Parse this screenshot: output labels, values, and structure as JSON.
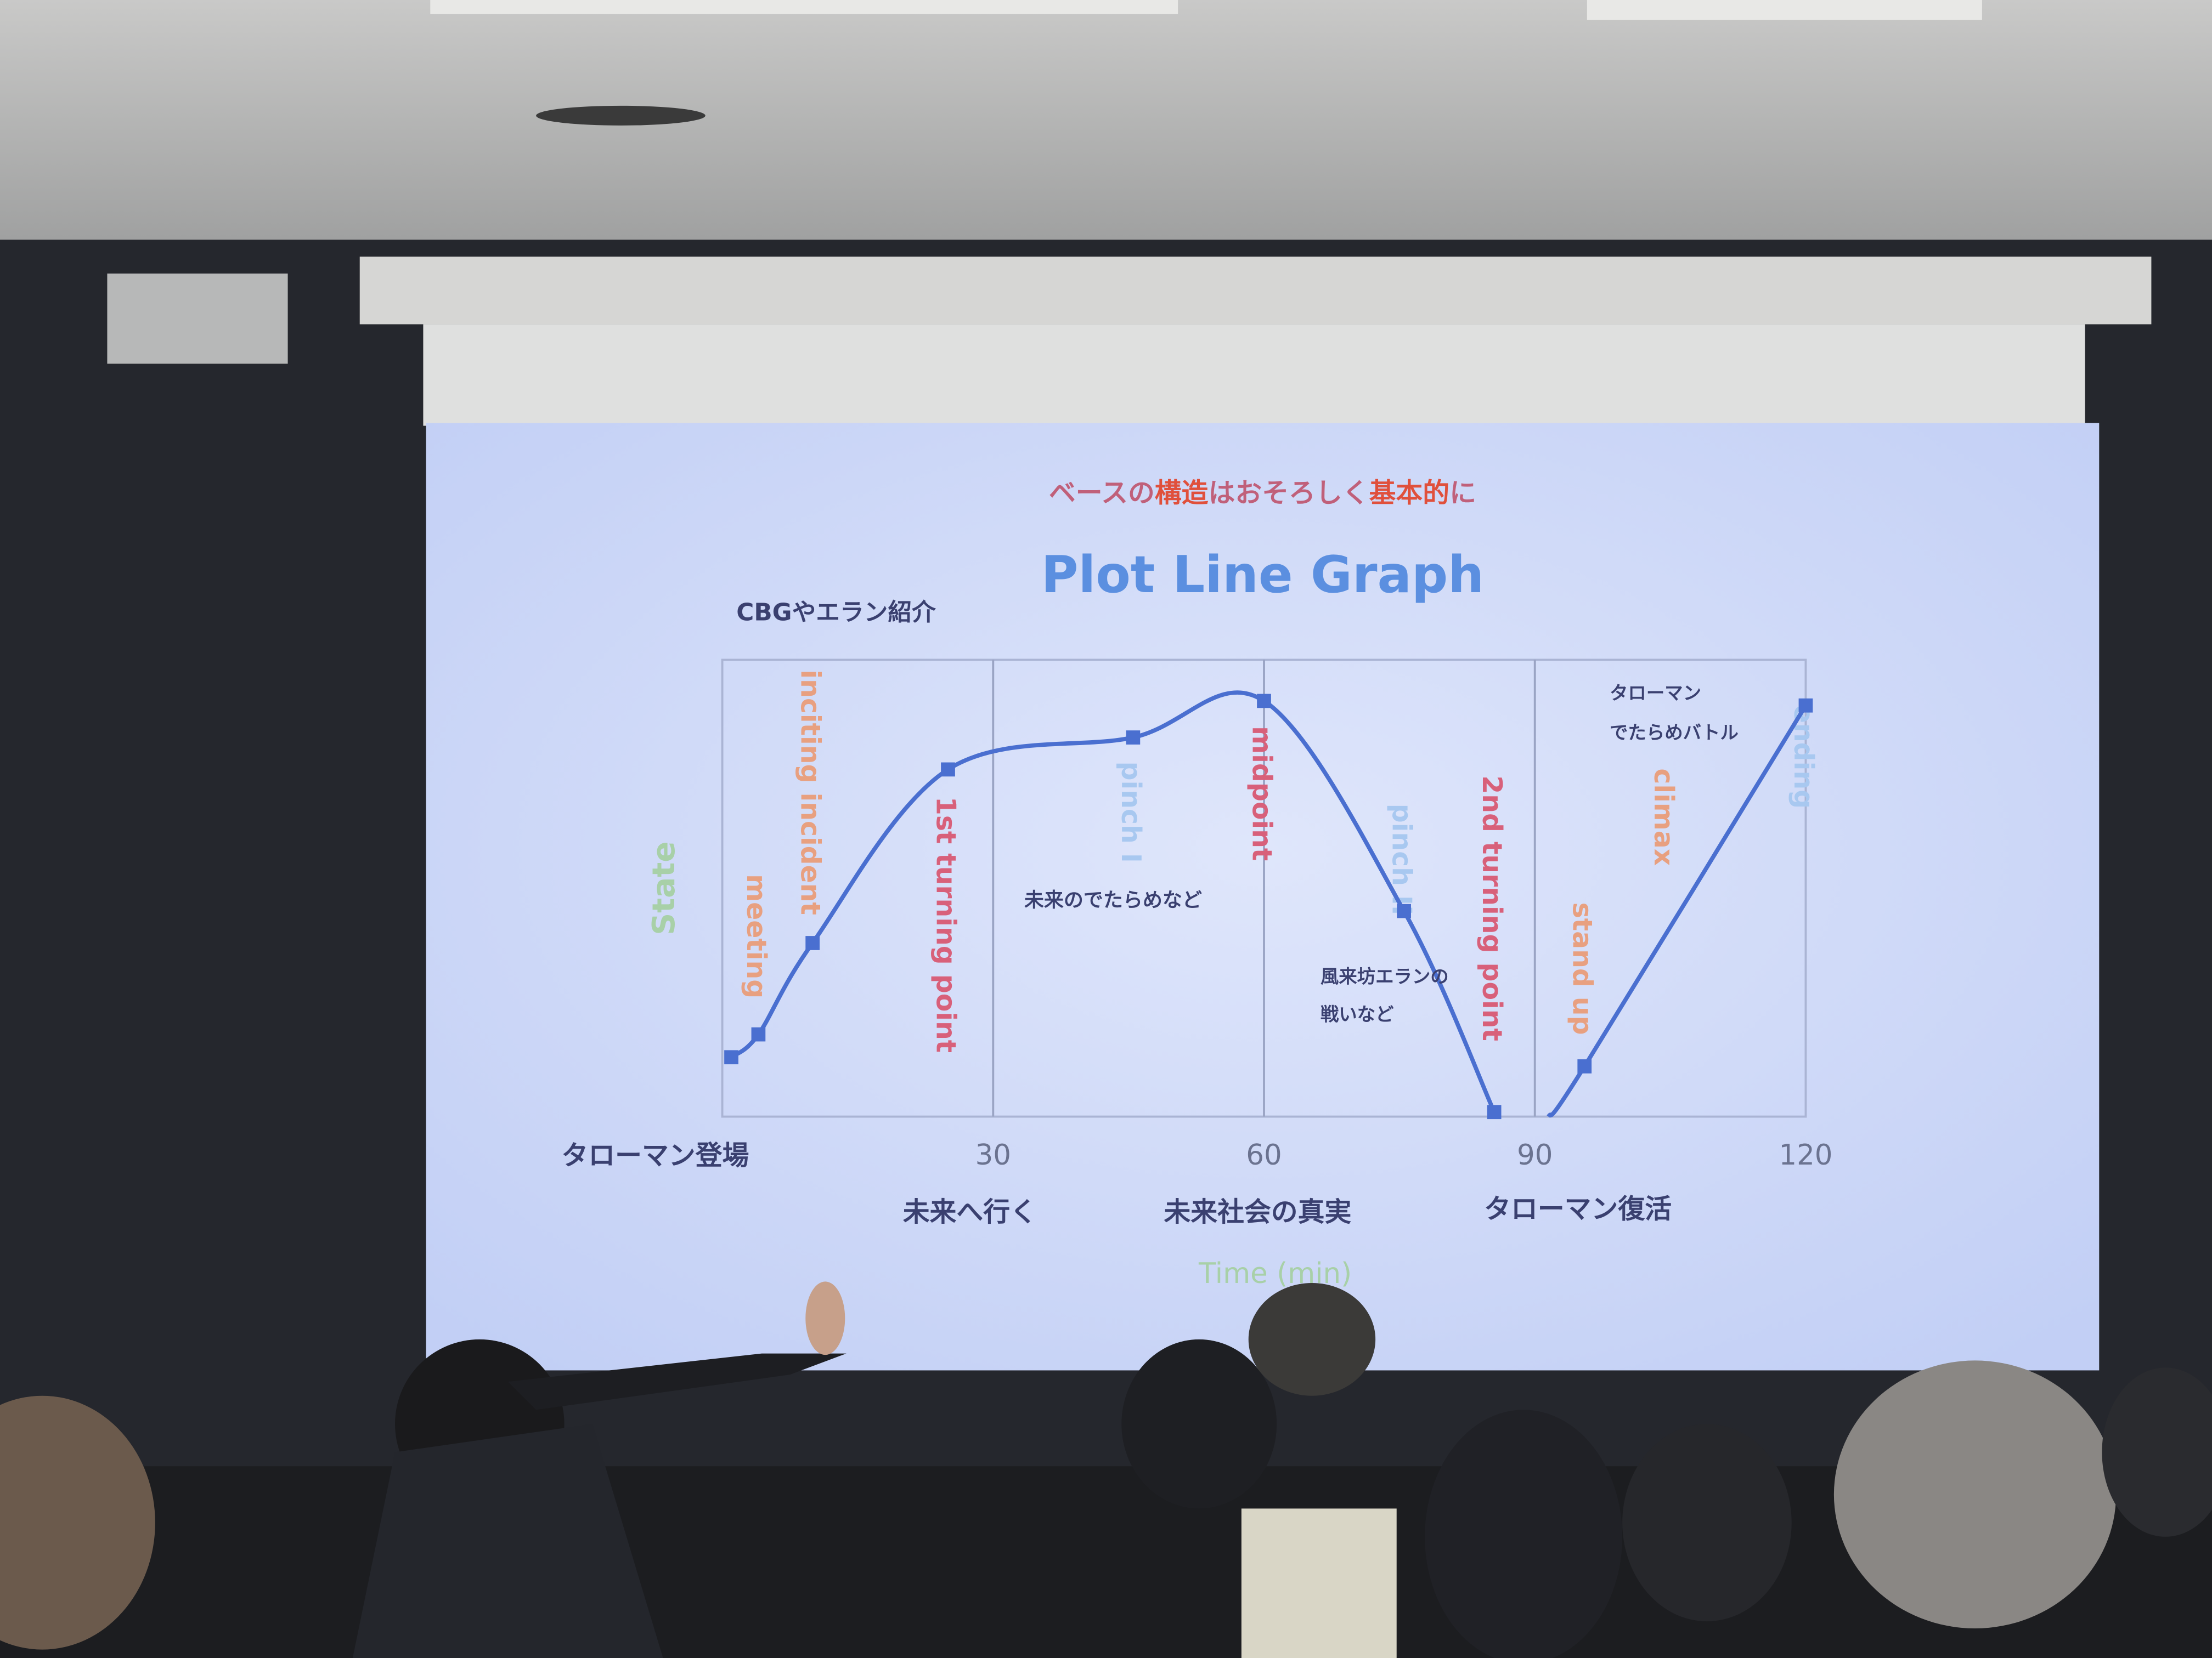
{
  "slide": {
    "heading": {
      "parts": [
        {
          "text": "ベースの",
          "color": "#c0607a"
        },
        {
          "text": "構造",
          "color": "#e0503c"
        },
        {
          "text": "はおそろしく",
          "color": "#c0607a"
        },
        {
          "text": "基本的",
          "color": "#e0503c"
        },
        {
          "text": "に",
          "color": "#c0607a"
        }
      ]
    },
    "title": "Plot Line Graph",
    "title_color": "#5b8fe0",
    "notes": {
      "intro": "CBGやエラン紹介",
      "future_nonsense": "未来のでたらめなど",
      "fuutoubou_1": "風来坊エランの",
      "fuutoubou_2": "戦いなど",
      "battle_1": "タローマン",
      "battle_2": "でたらめバトル",
      "appear": "タローマン登場",
      "go_future": "未来へ行く",
      "truth": "未来社会の真実",
      "revival": "タローマン復活"
    }
  },
  "chart_data": {
    "type": "line",
    "title": "Plot Line Graph",
    "xlabel": "Time (min)",
    "ylabel": "State",
    "xlim": [
      0,
      120
    ],
    "ylim": [
      0,
      100
    ],
    "xticks": [
      "30",
      "60",
      "90",
      "120"
    ],
    "grid": "vertical lines at 30, 60, 90",
    "line_color": "#4a6fd0",
    "marker": "square",
    "series": [
      {
        "segment": 1,
        "x": [
          1,
          4,
          10,
          25,
          45.5,
          60,
          75.5,
          85.5
        ],
        "y": [
          13,
          18,
          38,
          76,
          83,
          91,
          45,
          1
        ]
      },
      {
        "segment": 2,
        "x": [
          91.5,
          95.5,
          120
        ],
        "y": [
          0,
          11,
          90
        ],
        "first_marker": false
      }
    ],
    "annotations": [
      {
        "text": "meeting",
        "x": 4,
        "color": "#e8a080"
      },
      {
        "text": "inciting incident",
        "x": 10,
        "color": "#e8a080"
      },
      {
        "text": "1st turning point",
        "x": 25,
        "color": "#d8607a"
      },
      {
        "text": "pinch I",
        "x": 45.5,
        "color": "#a8c8f0"
      },
      {
        "text": "midpoint",
        "x": 60,
        "color": "#d8607a"
      },
      {
        "text": "pinch II",
        "x": 75.5,
        "color": "#a8c8f0"
      },
      {
        "text": "2nd turning point",
        "x": 85.5,
        "color": "#d8607a"
      },
      {
        "text": "stand up",
        "x": 95.5,
        "color": "#e8a080"
      },
      {
        "text": "climax",
        "x": 104.5,
        "color": "#e8a080"
      },
      {
        "text": "ending",
        "x": 120,
        "color": "#a8c8f0"
      }
    ],
    "axis_label_color": "#a8d0a8"
  }
}
